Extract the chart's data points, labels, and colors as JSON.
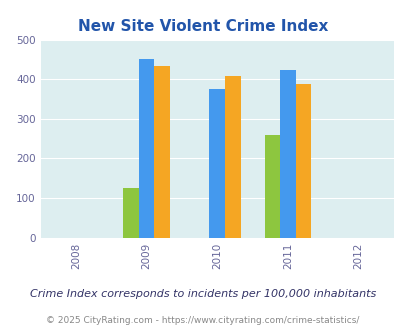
{
  "title": "New Site Violent Crime Index",
  "years": [
    2009,
    2010,
    2011
  ],
  "x_ticks": [
    2008,
    2009,
    2010,
    2011,
    2012
  ],
  "new_site": [
    125,
    0,
    260
  ],
  "alabama": [
    450,
    375,
    422
  ],
  "national": [
    433,
    407,
    387
  ],
  "color_new_site": "#8dc63f",
  "color_alabama": "#4499ee",
  "color_national": "#f5a623",
  "ylim": [
    0,
    500
  ],
  "yticks": [
    0,
    100,
    200,
    300,
    400,
    500
  ],
  "plot_bg_color": "#ddeef0",
  "fig_bg_color": "#ffffff",
  "title_color": "#2255aa",
  "grid_color": "#ffffff",
  "footer_text": "© 2025 CityRating.com - https://www.cityrating.com/crime-statistics/",
  "subtitle_text": "Crime Index corresponds to incidents per 100,000 inhabitants",
  "bar_width": 0.22,
  "title_fontsize": 11,
  "label_fontsize": 7.5,
  "legend_fontsize": 8.5,
  "subtitle_fontsize": 8,
  "footer_fontsize": 6.5,
  "subtitle_color": "#333366",
  "footer_color": "#888888"
}
